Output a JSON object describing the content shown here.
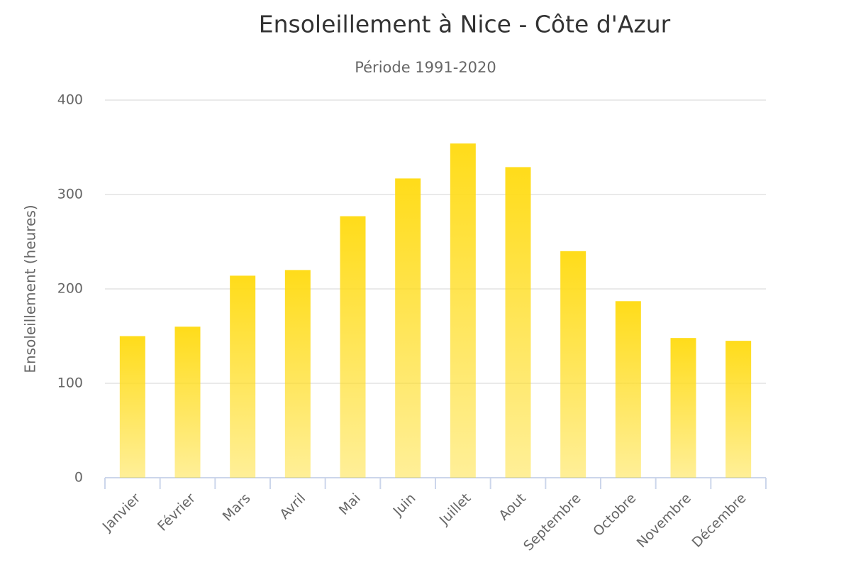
{
  "chart_data": {
    "type": "bar",
    "title": "Ensoleillement  à Nice - Côte d'Azur",
    "subtitle": "Période 1991-2020",
    "y_label": "Ensoleillement (heures)",
    "categories": [
      "Janvier",
      "Février",
      "Mars",
      "Avril",
      "Mai",
      "Juin",
      "Juillet",
      "Aout",
      "Septembre",
      "Octobre",
      "Novembre",
      "Décembre"
    ],
    "values": [
      150,
      160,
      214,
      220,
      277,
      317,
      354,
      329,
      240,
      187,
      148,
      145
    ],
    "color": "#ffdc1a",
    "ylim": [
      0,
      400
    ],
    "yticks": [
      0,
      100,
      200,
      300,
      400
    ],
    "grid": true
  }
}
